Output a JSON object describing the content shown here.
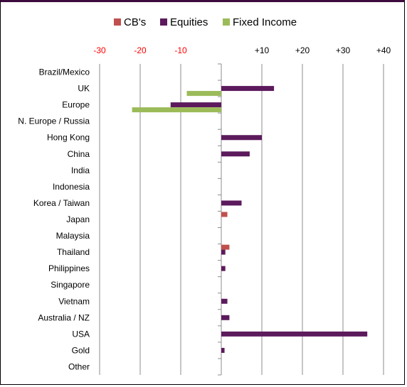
{
  "chart_data": {
    "type": "bar",
    "orientation": "horizontal",
    "legend_position": "top",
    "grid": true,
    "xlim": [
      -30,
      40
    ],
    "x_ticks": [
      {
        "value": -30,
        "label": "-30",
        "color": "#ff0000"
      },
      {
        "value": -20,
        "label": "-20",
        "color": "#ff0000"
      },
      {
        "value": -10,
        "label": "-10",
        "color": "#ff0000"
      },
      {
        "value": 10,
        "label": "+10",
        "color": "#000000"
      },
      {
        "value": 20,
        "label": "+20",
        "color": "#000000"
      },
      {
        "value": 30,
        "label": "+30",
        "color": "#000000"
      },
      {
        "value": 40,
        "label": "+40",
        "color": "#000000"
      }
    ],
    "categories": [
      "Brazil/Mexico",
      "UK",
      "Europe",
      "N. Europe / Russia",
      "Hong Kong",
      "China",
      "India",
      "Indonesia",
      "Korea / Taiwan",
      "Japan",
      "Malaysia",
      "Thailand",
      "Philippines",
      "Singapore",
      "Vietnam",
      "Australia / NZ",
      "USA",
      "Gold",
      "Other"
    ],
    "series": [
      {
        "name": "CB's",
        "color": "#c0504d",
        "values": [
          0,
          0,
          0,
          0,
          0,
          0,
          0,
          0,
          0,
          1.5,
          0,
          2,
          0,
          0,
          0,
          0,
          0,
          0,
          0
        ]
      },
      {
        "name": "Equities",
        "color": "#5c1a5c",
        "values": [
          0,
          13,
          -12.5,
          0,
          10,
          7,
          0,
          0,
          5,
          0,
          0,
          1,
          1,
          0,
          1.5,
          2,
          36,
          0.8,
          0
        ]
      },
      {
        "name": "Fixed Income",
        "color": "#9bbb59",
        "values": [
          0,
          -8.5,
          -22,
          0,
          0,
          0,
          0,
          0,
          0,
          0,
          0,
          0,
          0,
          0,
          0,
          0,
          0,
          0,
          0
        ]
      }
    ]
  }
}
